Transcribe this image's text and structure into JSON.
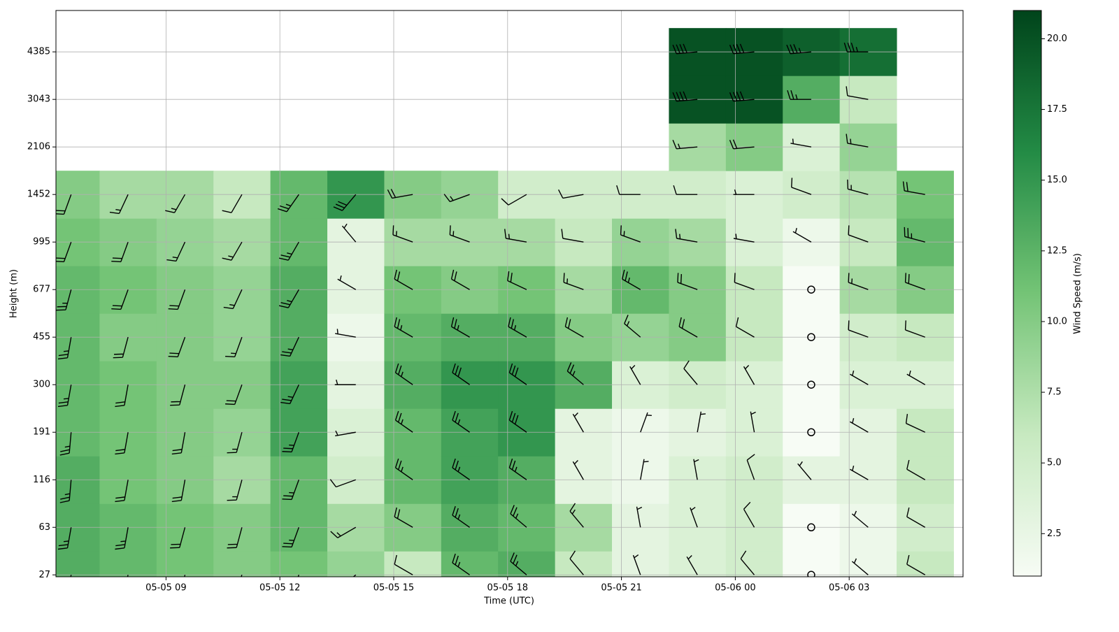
{
  "chart_data": {
    "type": "heatmap",
    "xlabel": "Time (UTC)",
    "ylabel": "Height (m)",
    "colorbar_label": "Wind Speed (m/s)",
    "x": [
      6.5,
      8,
      9.5,
      11,
      12.5,
      14,
      15.5,
      17,
      18.5,
      20,
      21.5,
      23,
      24.5,
      26,
      27.5,
      29
    ],
    "xlim": [
      6.1,
      30.0
    ],
    "xticks": [
      {
        "value": 9,
        "label": "05-05 09"
      },
      {
        "value": 12,
        "label": "05-05 12"
      },
      {
        "value": 15,
        "label": "05-05 15"
      },
      {
        "value": 18,
        "label": "05-05 18"
      },
      {
        "value": 21,
        "label": "05-05 21"
      },
      {
        "value": 24,
        "label": "05-06 00"
      },
      {
        "value": 27,
        "label": "05-06 03"
      }
    ],
    "ylim": [
      -0.04,
      11.87
    ],
    "yticks": [
      {
        "value": 0,
        "label": "27"
      },
      {
        "value": 1,
        "label": "63"
      },
      {
        "value": 2,
        "label": "116"
      },
      {
        "value": 3,
        "label": "191"
      },
      {
        "value": 4,
        "label": "300"
      },
      {
        "value": 5,
        "label": "455"
      },
      {
        "value": 6,
        "label": "677"
      },
      {
        "value": 7,
        "label": "995"
      },
      {
        "value": 8,
        "label": "1452"
      },
      {
        "value": 9,
        "label": "2106"
      },
      {
        "value": 10,
        "label": "3043"
      },
      {
        "value": 11,
        "label": "4385"
      }
    ],
    "grid": true,
    "colormap": [
      "#f7fcf5",
      "#c7e9c0",
      "#74c476",
      "#238b45",
      "#00441b"
    ],
    "clim": [
      1.0,
      21.0
    ],
    "cbar_ticks": [
      2.5,
      {
        "value": 5,
        "label": "5.0"
      },
      7.5,
      {
        "value": 10,
        "label": "10.0"
      },
      12.5,
      {
        "value": 15,
        "label": "15.0"
      },
      17.5,
      {
        "value": 20,
        "label": "20.0"
      }
    ],
    "speed": [
      [
        13,
        13,
        13,
        12,
        12,
        12,
        12,
        11,
        10,
        null,
        null,
        null
      ],
      [
        12,
        12,
        11,
        11,
        11,
        10,
        11,
        10,
        8,
        null,
        null,
        null
      ],
      [
        11,
        11,
        10,
        10,
        10,
        10,
        10,
        9,
        8,
        null,
        null,
        null
      ],
      [
        10,
        10,
        8,
        9,
        10,
        9,
        9,
        8,
        6,
        null,
        null,
        null
      ],
      [
        11,
        12,
        12,
        14,
        14,
        13,
        13,
        12,
        12,
        null,
        null,
        null
      ],
      [
        9,
        8,
        5,
        4,
        3,
        2,
        3,
        3,
        15,
        null,
        null,
        null
      ],
      [
        6,
        10,
        12,
        12,
        13,
        12,
        11,
        8,
        10,
        null,
        null,
        null
      ],
      [
        12,
        13,
        14,
        14,
        15,
        13,
        10,
        8,
        9,
        null,
        null,
        null
      ],
      [
        13,
        12,
        13,
        15,
        15,
        13,
        11,
        8,
        5,
        null,
        null,
        null
      ],
      [
        6,
        8,
        3,
        3,
        13,
        10,
        8,
        6,
        5,
        null,
        null,
        null
      ],
      [
        3,
        3,
        2,
        2,
        4,
        9,
        12,
        9,
        5,
        null,
        null,
        null
      ],
      [
        4,
        4,
        4,
        3,
        5,
        10,
        10,
        8,
        5,
        8,
        20,
        20
      ],
      [
        5,
        5,
        5,
        4,
        4,
        6,
        6,
        4,
        4,
        10,
        20,
        20
      ],
      [
        1,
        1,
        3,
        1,
        1,
        1,
        1,
        2,
        5,
        4,
        13,
        19
      ],
      [
        2,
        2,
        3,
        3,
        4,
        5,
        8,
        6,
        7,
        9,
        6,
        18
      ],
      [
        6,
        5,
        6,
        6,
        4,
        6,
        10,
        12,
        11,
        null,
        null,
        null
      ]
    ],
    "direction": [
      [
        190,
        190,
        185,
        185,
        190,
        190,
        195,
        200,
        200,
        null,
        null,
        null
      ],
      [
        195,
        190,
        190,
        190,
        190,
        195,
        200,
        200,
        205,
        null,
        null,
        null
      ],
      [
        195,
        195,
        190,
        190,
        195,
        200,
        200,
        205,
        210,
        null,
        null,
        null
      ],
      [
        200,
        195,
        195,
        195,
        200,
        200,
        205,
        210,
        210,
        null,
        null,
        null
      ],
      [
        200,
        200,
        200,
        200,
        205,
        205,
        210,
        210,
        215,
        null,
        null,
        null
      ],
      [
        230,
        240,
        250,
        260,
        270,
        280,
        300,
        320,
        220,
        null,
        null,
        null
      ],
      [
        300,
        300,
        305,
        305,
        305,
        300,
        300,
        290,
        260,
        null,
        null,
        null
      ],
      [
        305,
        305,
        305,
        305,
        305,
        300,
        300,
        290,
        250,
        null,
        null,
        null
      ],
      [
        310,
        310,
        305,
        305,
        305,
        300,
        295,
        280,
        240,
        null,
        null,
        null
      ],
      [
        320,
        320,
        330,
        330,
        310,
        300,
        290,
        280,
        260,
        null,
        null,
        null
      ],
      [
        340,
        350,
        10,
        20,
        330,
        310,
        300,
        290,
        270,
        null,
        null,
        null
      ],
      [
        330,
        340,
        350,
        10,
        320,
        300,
        290,
        280,
        270,
        265,
        265,
        265
      ],
      [
        320,
        330,
        340,
        350,
        330,
        300,
        290,
        280,
        270,
        265,
        265,
        265
      ],
      [
        300,
        310,
        320,
        330,
        320,
        310,
        300,
        300,
        290,
        280,
        270,
        265
      ],
      [
        310,
        310,
        300,
        300,
        300,
        290,
        290,
        290,
        285,
        280,
        280,
        270
      ],
      [
        300,
        300,
        300,
        295,
        300,
        290,
        290,
        285,
        280,
        null,
        null,
        null
      ]
    ]
  }
}
